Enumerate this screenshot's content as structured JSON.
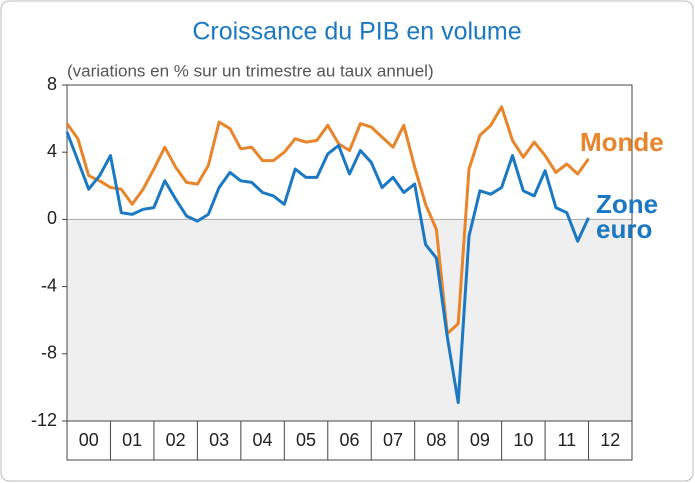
{
  "chart_data": {
    "type": "line",
    "title": "Croissance du PIB en volume",
    "subtitle": "(variations en % sur un trimestre au taux annuel)",
    "categories": [
      "00",
      null,
      null,
      null,
      "01",
      null,
      null,
      null,
      "02",
      null,
      null,
      null,
      "03",
      null,
      null,
      null,
      "04",
      null,
      null,
      null,
      "05",
      null,
      null,
      null,
      "06",
      null,
      null,
      null,
      "07",
      null,
      null,
      null,
      "08",
      null,
      null,
      null,
      "09",
      null,
      null,
      null,
      "10",
      null,
      null,
      null,
      "11",
      null,
      null,
      null,
      "12"
    ],
    "series": [
      {
        "name": "Monde",
        "color": "#e8842a",
        "values": [
          5.7,
          4.8,
          2.6,
          2.3,
          1.9,
          1.8,
          0.9,
          1.8,
          3.0,
          4.3,
          3.1,
          2.2,
          2.1,
          3.2,
          5.8,
          5.4,
          4.2,
          4.3,
          3.5,
          3.5,
          4.0,
          4.8,
          4.6,
          4.7,
          5.6,
          4.5,
          4.1,
          5.7,
          5.5,
          4.9,
          4.3,
          5.6,
          3.1,
          0.9,
          -0.6,
          -6.8,
          -6.2,
          3.0,
          5.0,
          5.6,
          6.7,
          4.7,
          3.7,
          4.6,
          3.8,
          2.8,
          3.3,
          2.7,
          3.6
        ]
      },
      {
        "name": "Zone euro",
        "color": "#1b78c2",
        "values": [
          5.2,
          3.5,
          1.8,
          2.6,
          3.8,
          0.4,
          0.3,
          0.6,
          0.7,
          2.3,
          1.2,
          0.2,
          -0.1,
          0.3,
          1.9,
          2.8,
          2.3,
          2.2,
          1.6,
          1.4,
          0.9,
          3.0,
          2.5,
          2.5,
          3.9,
          4.4,
          2.7,
          4.1,
          3.4,
          1.9,
          2.5,
          1.6,
          2.1,
          -1.5,
          -2.3,
          -7.0,
          -10.9,
          -1.0,
          1.7,
          1.5,
          1.9,
          3.8,
          1.7,
          1.4,
          2.9,
          0.7,
          0.4,
          -1.3,
          0.1
        ]
      }
    ],
    "ylim": [
      -12,
      8
    ],
    "yticks": [
      8,
      4,
      0,
      -4,
      -8,
      -12
    ]
  }
}
